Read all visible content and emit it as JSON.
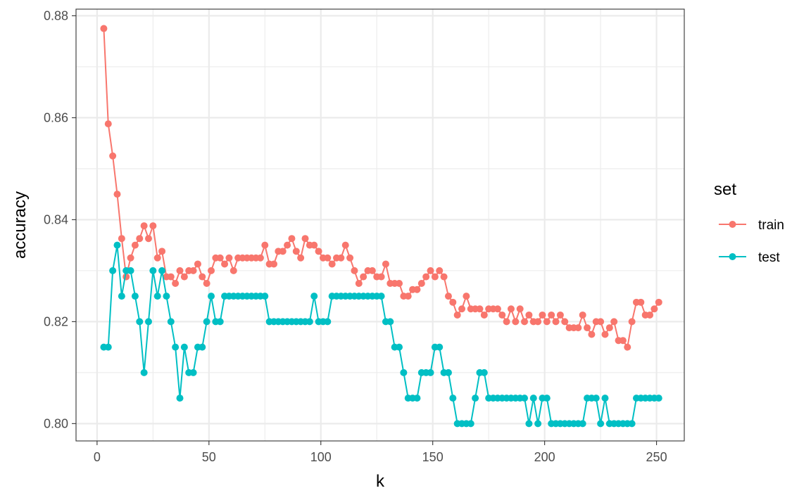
{
  "chart_data": {
    "type": "line",
    "title": "",
    "xlabel": "k",
    "ylabel": "accuracy",
    "xlim": [
      -9.4,
      262.4
    ],
    "ylim": [
      0.7966,
      0.8813
    ],
    "xticks": [
      0,
      50,
      100,
      150,
      200,
      250
    ],
    "xtick_labels": [
      "0",
      "50",
      "100",
      "150",
      "200",
      "250"
    ],
    "yticks": [
      0.8,
      0.82,
      0.84,
      0.86,
      0.88
    ],
    "ytick_labels": [
      "0.80",
      "0.82",
      "0.84",
      "0.86",
      "0.88"
    ],
    "grid": true,
    "legend": {
      "title": "set",
      "position": "right"
    },
    "x": [
      3,
      5,
      7,
      9,
      11,
      13,
      15,
      17,
      19,
      21,
      23,
      25,
      27,
      29,
      31,
      33,
      35,
      37,
      39,
      41,
      43,
      45,
      47,
      49,
      51,
      53,
      55,
      57,
      59,
      61,
      63,
      65,
      67,
      69,
      71,
      73,
      75,
      77,
      79,
      81,
      83,
      85,
      87,
      89,
      91,
      93,
      95,
      97,
      99,
      101,
      103,
      105,
      107,
      109,
      111,
      113,
      115,
      117,
      119,
      121,
      123,
      125,
      127,
      129,
      131,
      133,
      135,
      137,
      139,
      141,
      143,
      145,
      147,
      149,
      151,
      153,
      155,
      157,
      159,
      161,
      163,
      165,
      167,
      169,
      171,
      173,
      175,
      177,
      179,
      181,
      183,
      185,
      187,
      189,
      191,
      193,
      195,
      197,
      199,
      201,
      203,
      205,
      207,
      209,
      211,
      213,
      215,
      217,
      219,
      221,
      223,
      225,
      227,
      229,
      231,
      233,
      235,
      237,
      239,
      241,
      243,
      245,
      247,
      249,
      251
    ],
    "series": [
      {
        "name": "train",
        "color": "#F8766D",
        "values": [
          0.8775,
          0.8588,
          0.8525,
          0.845,
          0.8363,
          0.8288,
          0.8325,
          0.835,
          0.8363,
          0.8388,
          0.8363,
          0.8388,
          0.8325,
          0.8338,
          0.8288,
          0.8288,
          0.8275,
          0.83,
          0.8288,
          0.83,
          0.83,
          0.8313,
          0.8288,
          0.8275,
          0.83,
          0.8325,
          0.8325,
          0.8313,
          0.8325,
          0.83,
          0.8325,
          0.8325,
          0.8325,
          0.8325,
          0.8325,
          0.8325,
          0.835,
          0.8313,
          0.8313,
          0.8338,
          0.8338,
          0.835,
          0.8363,
          0.8338,
          0.8325,
          0.8363,
          0.835,
          0.835,
          0.8338,
          0.8325,
          0.8325,
          0.8313,
          0.8325,
          0.8325,
          0.835,
          0.8325,
          0.83,
          0.8275,
          0.8288,
          0.83,
          0.83,
          0.8288,
          0.8288,
          0.8313,
          0.8275,
          0.8275,
          0.8275,
          0.825,
          0.825,
          0.8263,
          0.8263,
          0.8275,
          0.8288,
          0.83,
          0.8288,
          0.83,
          0.8288,
          0.825,
          0.8238,
          0.8213,
          0.8225,
          0.825,
          0.8225,
          0.8225,
          0.8225,
          0.8213,
          0.8225,
          0.8225,
          0.8225,
          0.8213,
          0.82,
          0.8225,
          0.82,
          0.8225,
          0.82,
          0.8213,
          0.82,
          0.82,
          0.8213,
          0.82,
          0.8213,
          0.82,
          0.8213,
          0.82,
          0.8188,
          0.8188,
          0.8188,
          0.8213,
          0.8188,
          0.8175,
          0.82,
          0.82,
          0.8175,
          0.8188,
          0.82,
          0.8163,
          0.8163,
          0.815,
          0.82,
          0.8238,
          0.8238,
          0.8213,
          0.8213,
          0.8225,
          0.8238
        ]
      },
      {
        "name": "test",
        "color": "#00BFC4",
        "values": [
          0.815,
          0.815,
          0.83,
          0.835,
          0.825,
          0.83,
          0.83,
          0.825,
          0.82,
          0.81,
          0.82,
          0.83,
          0.825,
          0.83,
          0.825,
          0.82,
          0.815,
          0.805,
          0.815,
          0.81,
          0.81,
          0.815,
          0.815,
          0.82,
          0.825,
          0.82,
          0.82,
          0.825,
          0.825,
          0.825,
          0.825,
          0.825,
          0.825,
          0.825,
          0.825,
          0.825,
          0.825,
          0.82,
          0.82,
          0.82,
          0.82,
          0.82,
          0.82,
          0.82,
          0.82,
          0.82,
          0.82,
          0.825,
          0.82,
          0.82,
          0.82,
          0.825,
          0.825,
          0.825,
          0.825,
          0.825,
          0.825,
          0.825,
          0.825,
          0.825,
          0.825,
          0.825,
          0.825,
          0.82,
          0.82,
          0.815,
          0.815,
          0.81,
          0.805,
          0.805,
          0.805,
          0.81,
          0.81,
          0.81,
          0.815,
          0.815,
          0.81,
          0.81,
          0.805,
          0.8,
          0.8,
          0.8,
          0.8,
          0.805,
          0.81,
          0.81,
          0.805,
          0.805,
          0.805,
          0.805,
          0.805,
          0.805,
          0.805,
          0.805,
          0.805,
          0.8,
          0.805,
          0.8,
          0.805,
          0.805,
          0.8,
          0.8,
          0.8,
          0.8,
          0.8,
          0.8,
          0.8,
          0.8,
          0.805,
          0.805,
          0.805,
          0.8,
          0.805,
          0.8,
          0.8,
          0.8,
          0.8,
          0.8,
          0.8,
          0.805,
          0.805,
          0.805,
          0.805,
          0.805,
          0.805
        ]
      }
    ]
  }
}
